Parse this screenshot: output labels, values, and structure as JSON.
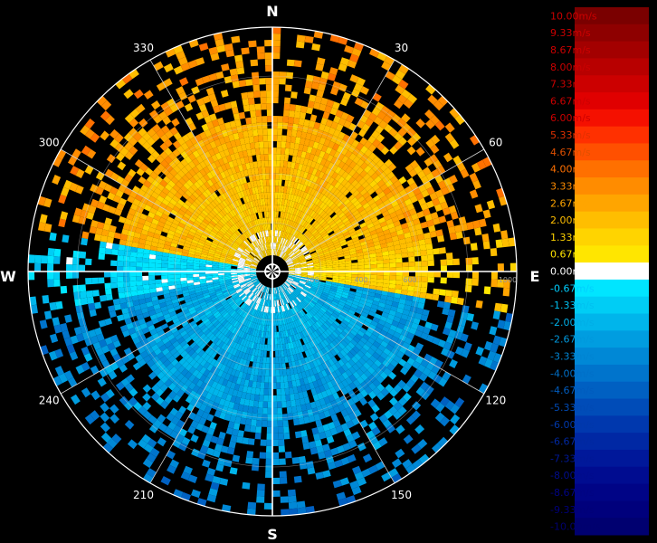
{
  "chart_data": {
    "type": "polar-heatmap",
    "quantity": "radial velocity",
    "unit": "m/s",
    "compass": {
      "north": "N",
      "east": "E",
      "south": "S",
      "west": "W"
    },
    "azimuth_labels": [
      "30",
      "60",
      "120",
      "150",
      "210",
      "240",
      "300",
      "330"
    ],
    "range_labels": [
      "200",
      "400",
      "600",
      "1000"
    ],
    "range_max": 1000,
    "colorbar": {
      "min": -10,
      "max": 10,
      "labels": [
        "10.00m/s",
        "9.33m/s",
        "8.67m/s",
        "8.00m/s",
        "7.33m/s",
        "6.67m/s",
        "6.00m/s",
        "5.33m/s",
        "4.67m/s",
        "4.00m/s",
        "3.33m/s",
        "2.67m/s",
        "2.00m/s",
        "1.33m/s",
        "0.67m/s",
        "0.00m/s",
        "-0.67m/s",
        "-1.33m/s",
        "-2.00m/s",
        "-2.67m/s",
        "-3.33m/s",
        "-4.00m/s",
        "-4.67m/s",
        "-5.33m/s",
        "-6.00m/s",
        "-6.67m/s",
        "-7.33m/s",
        "-8.00m/s",
        "-8.67m/s",
        "-9.33m/s",
        "-10.00m/s"
      ],
      "colors": [
        "#7a0000",
        "#8e0000",
        "#a30000",
        "#b80000",
        "#cc0000",
        "#e00000",
        "#f51000",
        "#ff3000",
        "#ff5000",
        "#ff7000",
        "#ff8c00",
        "#ffa500",
        "#ffbe00",
        "#ffd400",
        "#ffe600",
        "#ffffff",
        "#00e5ff",
        "#00cdf5",
        "#00b5eb",
        "#009de0",
        "#0088d6",
        "#0074cc",
        "#0060c2",
        "#004cb8",
        "#0038ae",
        "#0028a4",
        "#00189a",
        "#000c90",
        "#000486",
        "#00007c",
        "#000070"
      ],
      "label_colors": [
        "#cc0000",
        "#cc0000",
        "#cc0000",
        "#cc0000",
        "#cc0000",
        "#cc0000",
        "#cc0000",
        "#e03000",
        "#e05000",
        "#ff7000",
        "#ff8c00",
        "#ffa500",
        "#ffbe00",
        "#ffd400",
        "#ffe600",
        "#ffffff",
        "#00cfff",
        "#00c0f0",
        "#00aee6",
        "#0098dc",
        "#0084d2",
        "#0070c8",
        "#005cbe",
        "#004ab4",
        "#0038aa",
        "#0028a0",
        "#001896",
        "#000c8c",
        "#000482",
        "#000078",
        "#00006e"
      ]
    },
    "velocity_by_azimuth_band": [
      {
        "azimuth_from": 280,
        "azimuth_to": 80,
        "mean_velocity": 2.3
      },
      {
        "azimuth_from": 80,
        "azimuth_to": 100,
        "mean_velocity": 1.5
      },
      {
        "azimuth_from": 100,
        "azimuth_to": 260,
        "mean_velocity": -2.7
      },
      {
        "azimuth_from": 260,
        "azimuth_to": 280,
        "mean_velocity": -1.0
      }
    ]
  }
}
